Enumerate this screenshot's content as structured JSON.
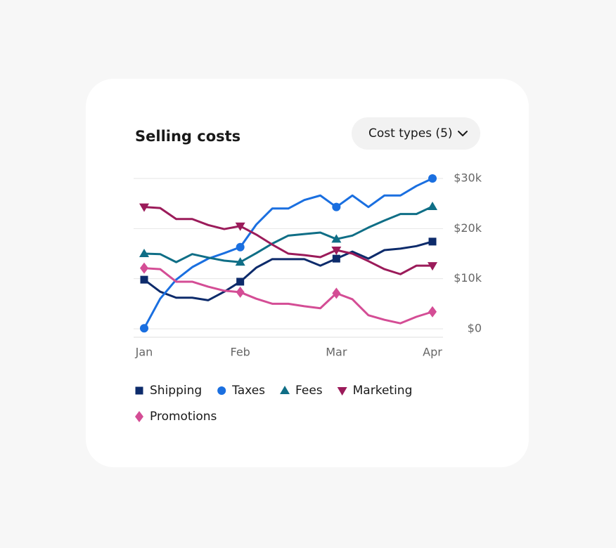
{
  "chart_data": {
    "type": "line",
    "title": "Selling costs",
    "categories": [
      "Jan",
      null,
      null,
      null,
      null,
      null,
      "Feb",
      null,
      null,
      null,
      null,
      null,
      "Mar",
      null,
      null,
      null,
      null,
      null,
      "Apr"
    ],
    "series": [
      {
        "name": "Shipping",
        "color": "#0d2b6b",
        "marker": "square",
        "values": [
          9800,
          7400,
          6200,
          6200,
          5700,
          7400,
          9400,
          12200,
          13900,
          13900,
          13900,
          12600,
          14000,
          15400,
          14000,
          15700,
          16000,
          16500,
          17400
        ]
      },
      {
        "name": "Taxes",
        "color": "#1a6fe0",
        "marker": "circle",
        "values": [
          100,
          6000,
          9800,
          12300,
          14000,
          15100,
          16300,
          20800,
          24000,
          24000,
          25700,
          26600,
          24300,
          26600,
          24300,
          26600,
          26600,
          28500,
          30000
        ]
      },
      {
        "name": "Fees",
        "color": "#0f6e86",
        "marker": "triangle",
        "values": [
          15000,
          14900,
          13300,
          14900,
          14200,
          13600,
          13300,
          15100,
          17000,
          18600,
          18900,
          19200,
          17900,
          18600,
          20200,
          21600,
          22900,
          22900,
          24400
        ]
      },
      {
        "name": "Marketing",
        "color": "#9b1b5a",
        "marker": "triangle-down",
        "values": [
          24300,
          24100,
          21900,
          21900,
          20700,
          19900,
          20500,
          18800,
          16800,
          15000,
          14700,
          14300,
          15700,
          15000,
          13500,
          11900,
          10900,
          12600,
          12600
        ]
      },
      {
        "name": "Promotions",
        "color": "#d44d95",
        "marker": "diamond",
        "values": [
          12100,
          11900,
          9400,
          9400,
          8400,
          7600,
          7300,
          6000,
          5000,
          5000,
          4500,
          4100,
          7100,
          5900,
          2700,
          1800,
          1100,
          2400,
          3400
        ]
      }
    ],
    "ylim": [
      0,
      30000
    ],
    "yticks": [
      {
        "value": 0,
        "label": "$0"
      },
      {
        "value": 10000,
        "label": "$10k"
      },
      {
        "value": 20000,
        "label": "$20k"
      },
      {
        "value": 30000,
        "label": "$30k"
      }
    ],
    "grid": true,
    "legend": "bottom"
  },
  "controls": {
    "cost_types": "Cost types (5)"
  }
}
